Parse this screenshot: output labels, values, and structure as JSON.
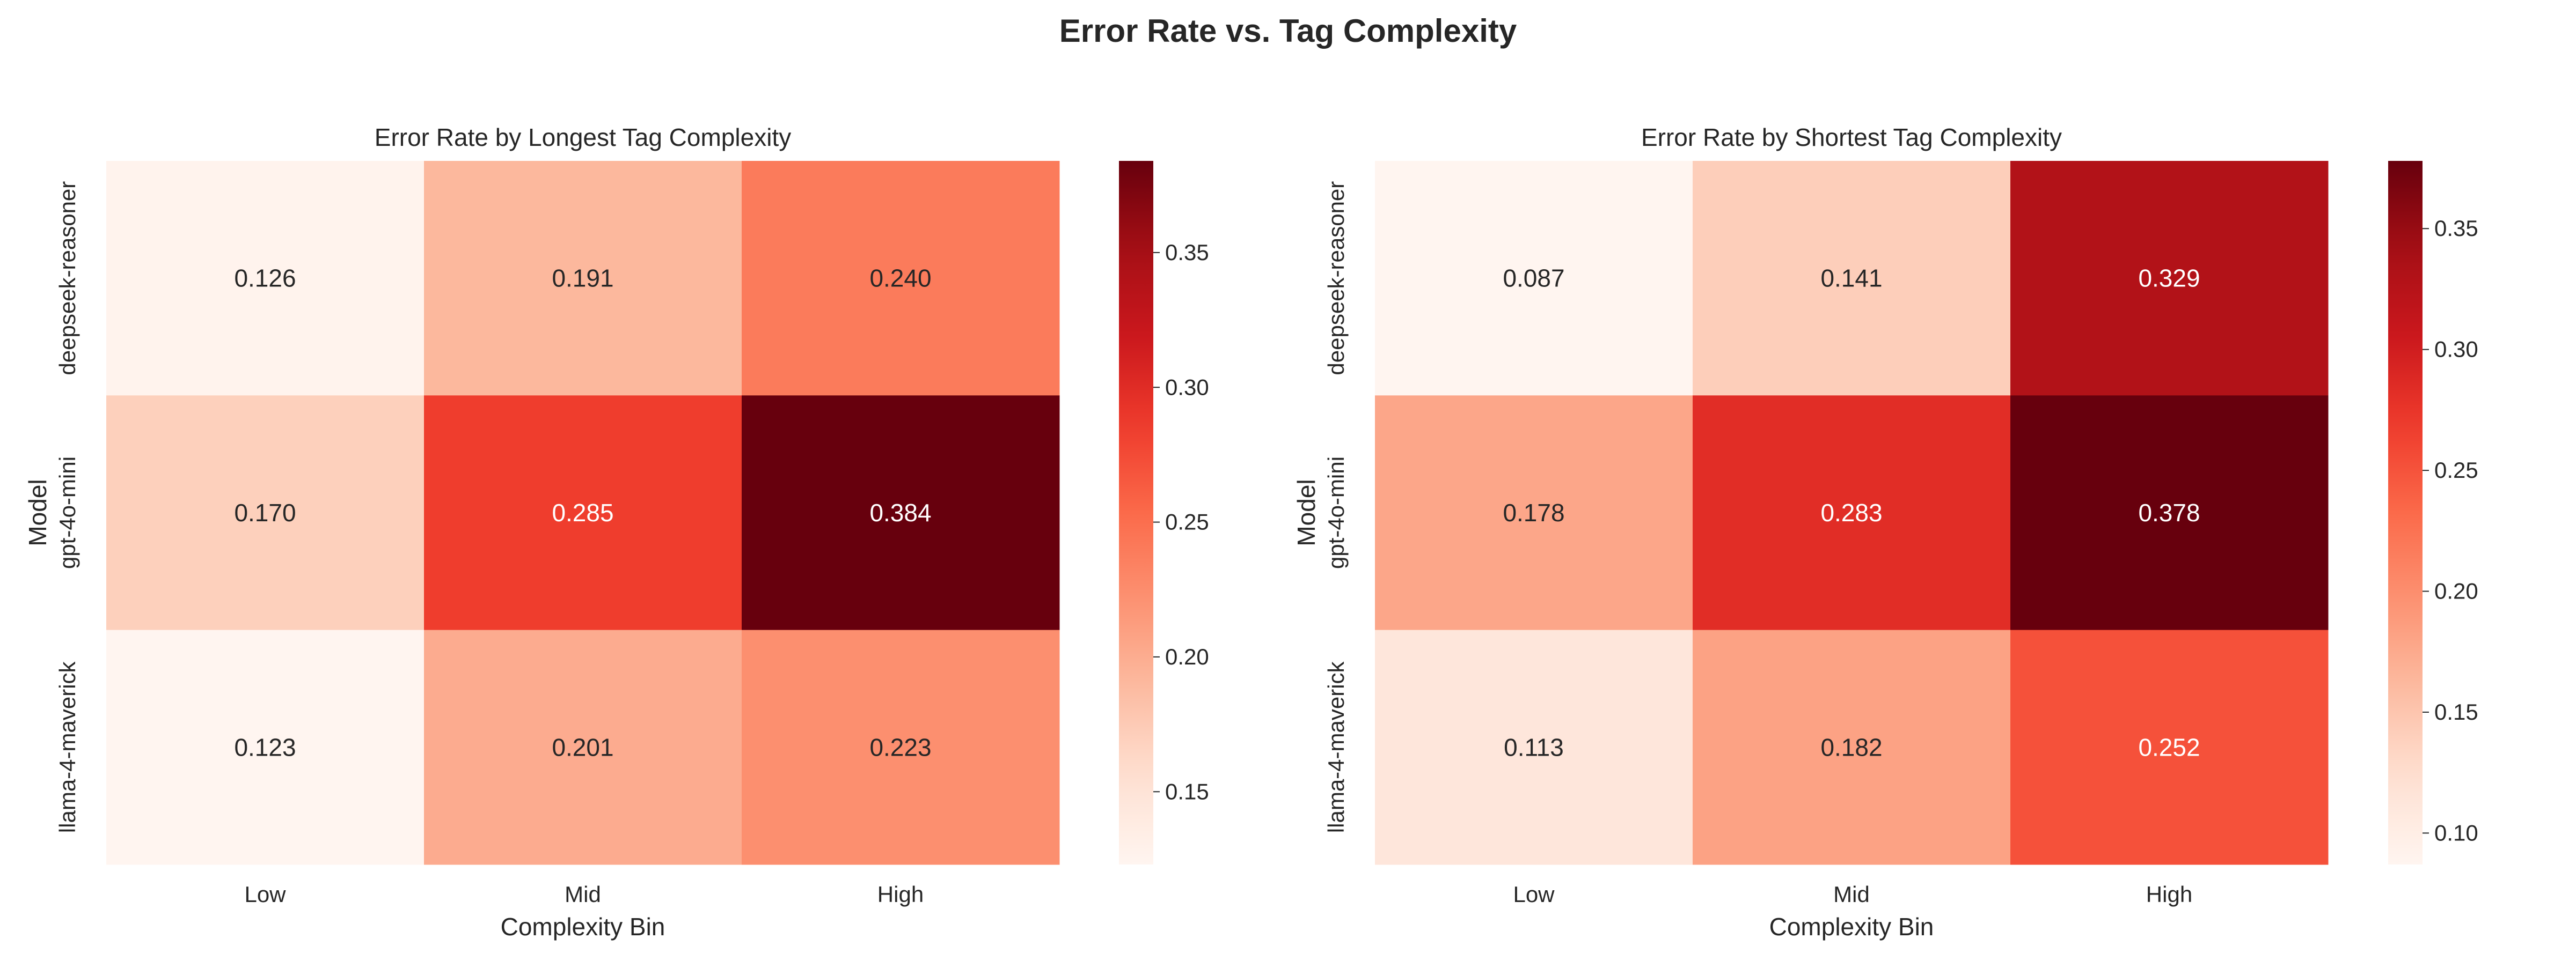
{
  "figure": {
    "title": "Error Rate vs. Tag Complexity"
  },
  "chart_data": [
    {
      "type": "heatmap",
      "title": "Error Rate by Longest Tag Complexity",
      "xlabel": "Complexity Bin",
      "ylabel": "Model",
      "x_categories": [
        "Low",
        "Mid",
        "High"
      ],
      "y_categories": [
        "deepseek-reasoner",
        "gpt-4o-mini",
        "llama-4-maverick"
      ],
      "values": [
        [
          0.126,
          0.191,
          0.24
        ],
        [
          0.17,
          0.285,
          0.384
        ],
        [
          0.123,
          0.201,
          0.223
        ]
      ],
      "value_labels": [
        [
          "0.126",
          "0.191",
          "0.240"
        ],
        [
          "0.170",
          "0.285",
          "0.384"
        ],
        [
          "0.123",
          "0.201",
          "0.223"
        ]
      ],
      "colorbar": {
        "vmin": 0.123,
        "vmax": 0.384,
        "ticks": [
          0.15,
          0.2,
          0.25,
          0.3,
          0.35
        ],
        "tick_labels": [
          "0.15",
          "0.20",
          "0.25",
          "0.30",
          "0.35"
        ]
      },
      "colormap": "Reds"
    },
    {
      "type": "heatmap",
      "title": "Error Rate by Shortest Tag Complexity",
      "xlabel": "Complexity Bin",
      "ylabel": "Model",
      "x_categories": [
        "Low",
        "Mid",
        "High"
      ],
      "y_categories": [
        "deepseek-reasoner",
        "gpt-4o-mini",
        "llama-4-maverick"
      ],
      "values": [
        [
          0.087,
          0.141,
          0.329
        ],
        [
          0.178,
          0.283,
          0.378
        ],
        [
          0.113,
          0.182,
          0.252
        ]
      ],
      "value_labels": [
        [
          "0.087",
          "0.141",
          "0.329"
        ],
        [
          "0.178",
          "0.283",
          "0.378"
        ],
        [
          "0.113",
          "0.182",
          "0.252"
        ]
      ],
      "colorbar": {
        "vmin": 0.087,
        "vmax": 0.378,
        "ticks": [
          0.1,
          0.15,
          0.2,
          0.25,
          0.3,
          0.35
        ],
        "tick_labels": [
          "0.10",
          "0.15",
          "0.20",
          "0.25",
          "0.30",
          "0.35"
        ]
      },
      "colormap": "Reds"
    }
  ]
}
